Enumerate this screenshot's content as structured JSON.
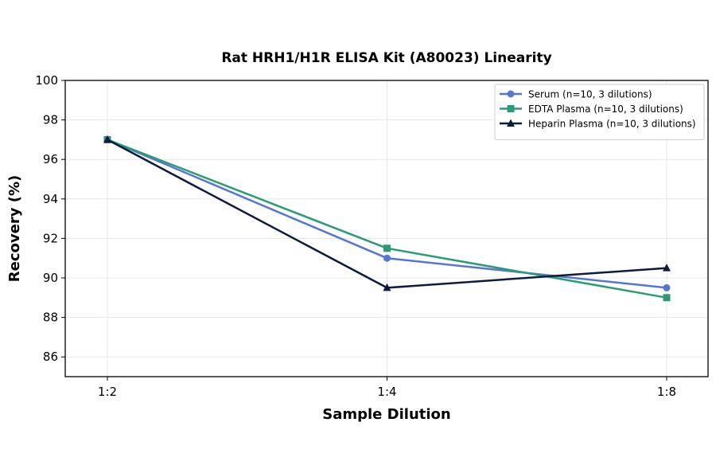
{
  "chart_data": {
    "type": "line",
    "title": "Rat HRH1/H1R ELISA Kit (A80023) Linearity",
    "xlabel": "Sample Dilution",
    "ylabel": "Recovery (%)",
    "categories": [
      "1:2",
      "1:4",
      "1:8"
    ],
    "ylim": [
      85,
      100
    ],
    "yticks": [
      86,
      88,
      90,
      92,
      94,
      96,
      98,
      100
    ],
    "grid": true,
    "legend_position": "top-right",
    "series": [
      {
        "name": "Serum (n=10, 3 dilutions)",
        "values": [
          97.0,
          91.0,
          89.5
        ],
        "color": "#5577d4",
        "marker": "circle"
      },
      {
        "name": "EDTA Plasma (n=10, 3 dilutions)",
        "values": [
          97.0,
          91.5,
          89.0
        ],
        "color": "#2a9b74",
        "marker": "square"
      },
      {
        "name": "Heparin Plasma (n=10, 3 dilutions)",
        "values": [
          97.0,
          89.5,
          90.5
        ],
        "color": "#0d1b3e",
        "marker": "triangle"
      }
    ]
  }
}
